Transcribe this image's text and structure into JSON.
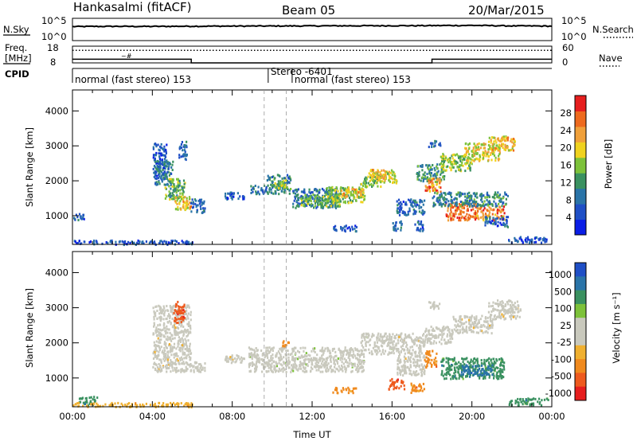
{
  "header": {
    "station": "Hankasalmi (fitACF)",
    "beam": "Beam 05",
    "date": "20/Mar/2015"
  },
  "noise_panel": {
    "left_label": "N.Sky",
    "left_ticks": [
      "10^5",
      "10^0"
    ],
    "right_label": "N.Search",
    "right_ticks": [
      "10^5",
      "10^0"
    ]
  },
  "freq_panel": {
    "left_label_1": "Freq.",
    "left_label_2": "[MHz]",
    "left_ticks": [
      "18",
      "8"
    ],
    "right_label": "Nave",
    "right_ticks": [
      "60",
      "0"
    ]
  },
  "cpid_panel": {
    "label": "CPID",
    "segments": [
      {
        "start_h": 0,
        "end_h": 9.8,
        "text": "normal (fast stereo) 153"
      },
      {
        "start_h": 9.8,
        "end_h": 11.0,
        "text": "Stereo -6401"
      },
      {
        "start_h": 11.0,
        "end_h": 24,
        "text": "normal (fast stereo) 153"
      }
    ]
  },
  "colors": {
    "power_scale": [
      "#0a1ee6",
      "#1f4fc6",
      "#2a74a8",
      "#3a9160",
      "#7dc23a",
      "#f0d21e",
      "#f0a03a",
      "#ee6a1e",
      "#e61e1e"
    ],
    "velocity_scale": [
      "#e61e1e",
      "#ee5a1e",
      "#f08a1e",
      "#f0b030",
      "#c9c9bd",
      "#c9c9bd",
      "#7dc23a",
      "#3a9160",
      "#2a74a8",
      "#1f4fc6"
    ]
  },
  "chart_data": [
    {
      "type": "line",
      "panel": "noise",
      "x": [
        0,
        2,
        4,
        6,
        8,
        10,
        12,
        14,
        16,
        18,
        20,
        22,
        24
      ],
      "series": [
        {
          "name": "N.Sky",
          "values": [
            1400,
            1600,
            1500,
            1700,
            1800,
            1900,
            2000,
            2100,
            2200,
            2300,
            2600,
            2000,
            1800
          ]
        }
      ],
      "ylim": [
        1,
        100000
      ],
      "ylog": true
    },
    {
      "type": "line",
      "panel": "frequency",
      "x": [
        0,
        5.95,
        5.95,
        18.0,
        18.0,
        24
      ],
      "series": [
        {
          "name": "Freq.",
          "values": [
            10.2,
            10.2,
            8.0,
            8.0,
            10.2,
            10.2
          ]
        },
        {
          "name": "Nave",
          "values": [
            45,
            45,
            45,
            45,
            45,
            45
          ]
        }
      ],
      "ylim": [
        8,
        18
      ]
    },
    {
      "type": "heatmap",
      "panel": "power",
      "ylabel": "Slant Range [km]",
      "xlim": [
        0,
        24
      ],
      "ylim": [
        180,
        4600
      ],
      "y_ticks": [
        1000,
        2000,
        3000,
        4000
      ],
      "colorbar": {
        "label": "Power [dB]",
        "range": [
          0,
          32
        ],
        "ticks": [
          4,
          8,
          12,
          16,
          20,
          24,
          28
        ]
      },
      "dashed_lines_h": [
        9.6,
        10.7
      ],
      "regions": [
        {
          "t0": 0.0,
          "t1": 0.6,
          "r0": 900,
          "r1": 1100,
          "v": 6
        },
        {
          "t0": 4.0,
          "t1": 4.7,
          "r0": 2100,
          "r1": 3100,
          "v": 5
        },
        {
          "t0": 4.1,
          "t1": 5.0,
          "r0": 1900,
          "r1": 2600,
          "v": 9
        },
        {
          "t0": 4.6,
          "t1": 5.6,
          "r0": 1500,
          "r1": 2100,
          "v": 14
        },
        {
          "t0": 5.1,
          "t1": 5.9,
          "r0": 1200,
          "r1": 1600,
          "v": 20
        },
        {
          "t0": 5.5,
          "t1": 5.9,
          "r0": 1250,
          "r1": 1450,
          "v": 24
        },
        {
          "t0": 5.9,
          "t1": 6.6,
          "r0": 1100,
          "r1": 1500,
          "v": 6
        },
        {
          "t0": 5.3,
          "t1": 5.7,
          "r0": 2600,
          "r1": 3150,
          "v": 7
        },
        {
          "t0": 7.6,
          "t1": 8.6,
          "r0": 1500,
          "r1": 1700,
          "v": 5
        },
        {
          "t0": 8.9,
          "t1": 9.7,
          "r0": 1650,
          "r1": 1900,
          "v": 8
        },
        {
          "t0": 9.7,
          "t1": 10.9,
          "r0": 1650,
          "r1": 2200,
          "v": 10
        },
        {
          "t0": 10.1,
          "t1": 10.8,
          "r0": 1800,
          "r1": 2050,
          "v": 16
        },
        {
          "t0": 11.0,
          "t1": 13.2,
          "r0": 1250,
          "r1": 1800,
          "v": 8
        },
        {
          "t0": 11.4,
          "t1": 13.4,
          "r0": 1300,
          "r1": 1650,
          "v": 14
        },
        {
          "t0": 12.6,
          "t1": 14.6,
          "r0": 1400,
          "r1": 1850,
          "v": 16
        },
        {
          "t0": 13.4,
          "t1": 14.6,
          "r0": 1550,
          "r1": 1800,
          "v": 22
        },
        {
          "t0": 14.4,
          "t1": 15.4,
          "r0": 1850,
          "r1": 2150,
          "v": 15
        },
        {
          "t0": 15.0,
          "t1": 16.2,
          "r0": 1950,
          "r1": 2300,
          "v": 18
        },
        {
          "t0": 14.8,
          "t1": 16.0,
          "r0": 2100,
          "r1": 2350,
          "v": 22
        },
        {
          "t0": 16.2,
          "t1": 17.6,
          "r0": 1050,
          "r1": 1500,
          "v": 6
        },
        {
          "t0": 17.2,
          "t1": 18.6,
          "r0": 2000,
          "r1": 2500,
          "v": 12
        },
        {
          "t0": 18.4,
          "t1": 20.0,
          "r0": 2300,
          "r1": 2800,
          "v": 16
        },
        {
          "t0": 19.6,
          "t1": 21.4,
          "r0": 2600,
          "r1": 3100,
          "v": 20
        },
        {
          "t0": 20.8,
          "t1": 22.2,
          "r0": 2900,
          "r1": 3300,
          "v": 22
        },
        {
          "t0": 17.6,
          "t1": 18.4,
          "r0": 1700,
          "r1": 2100,
          "v": 26
        },
        {
          "t0": 18.6,
          "t1": 20.2,
          "r0": 900,
          "r1": 1400,
          "v": 28
        },
        {
          "t0": 20.2,
          "t1": 21.6,
          "r0": 900,
          "r1": 1300,
          "v": 26
        },
        {
          "t0": 18.0,
          "t1": 21.8,
          "r0": 1300,
          "r1": 1700,
          "v": 10
        },
        {
          "t0": 13.0,
          "t1": 14.2,
          "r0": 580,
          "r1": 760,
          "v": 6
        },
        {
          "t0": 16.0,
          "t1": 16.5,
          "r0": 580,
          "r1": 880,
          "v": 8
        },
        {
          "t0": 17.1,
          "t1": 17.6,
          "r0": 580,
          "r1": 900,
          "v": 6
        },
        {
          "t0": 20.6,
          "t1": 21.8,
          "r0": 700,
          "r1": 1000,
          "v": 6
        },
        {
          "t0": 17.8,
          "t1": 18.4,
          "r0": 3000,
          "r1": 3200,
          "v": 7
        },
        {
          "t0": 21.8,
          "t1": 23.8,
          "r0": 250,
          "r1": 420,
          "v": 5
        },
        {
          "t0": 0.0,
          "t1": 6.0,
          "r0": 200,
          "r1": 320,
          "v": 5
        }
      ]
    },
    {
      "type": "heatmap",
      "panel": "velocity",
      "ylabel": "Slant Range [km]",
      "xlabel": "Time UT",
      "xlim": [
        0,
        24
      ],
      "ylim": [
        180,
        4600
      ],
      "x_ticks": [
        "00:00",
        "04:00",
        "08:00",
        "12:00",
        "16:00",
        "20:00",
        "00:00"
      ],
      "y_ticks": [
        1000,
        2000,
        3000,
        4000
      ],
      "colorbar": {
        "label": "Velocity [m s⁻¹]",
        "ticks": [
          "1000",
          "500",
          "100",
          "25",
          "-25",
          "-100",
          "-500",
          "-1000"
        ]
      },
      "dashed_lines_h": [
        9.6,
        10.7
      ],
      "regions": [
        {
          "t0": 4.0,
          "t1": 5.9,
          "r0": 1200,
          "r1": 3100,
          "c": 4
        },
        {
          "t0": 5.0,
          "t1": 5.6,
          "r0": 2600,
          "r1": 3200,
          "c": 1
        },
        {
          "t0": 5.9,
          "t1": 6.6,
          "r0": 1200,
          "r1": 1500,
          "c": 4
        },
        {
          "t0": 7.6,
          "t1": 8.6,
          "r0": 1450,
          "r1": 1700,
          "c": 4
        },
        {
          "t0": 8.8,
          "t1": 14.6,
          "r0": 1200,
          "r1": 1900,
          "c": 5
        },
        {
          "t0": 10.4,
          "t1": 10.8,
          "r0": 1900,
          "r1": 2100,
          "c": 2
        },
        {
          "t0": 14.4,
          "t1": 16.2,
          "r0": 1700,
          "r1": 2300,
          "c": 5
        },
        {
          "t0": 16.2,
          "t1": 17.6,
          "r0": 1100,
          "r1": 2300,
          "c": 4
        },
        {
          "t0": 17.6,
          "t1": 19.0,
          "r0": 2000,
          "r1": 2500,
          "c": 4
        },
        {
          "t0": 19.0,
          "t1": 21.0,
          "r0": 2300,
          "r1": 2800,
          "c": 4
        },
        {
          "t0": 20.8,
          "t1": 22.4,
          "r0": 2700,
          "r1": 3250,
          "c": 4
        },
        {
          "t0": 17.6,
          "t1": 18.2,
          "r0": 1300,
          "r1": 1800,
          "c": 2
        },
        {
          "t0": 18.4,
          "t1": 21.6,
          "r0": 1000,
          "r1": 1600,
          "c": 7
        },
        {
          "t0": 19.4,
          "t1": 21.0,
          "r0": 1100,
          "r1": 1400,
          "c": 8
        },
        {
          "t0": 13.0,
          "t1": 14.2,
          "r0": 600,
          "r1": 760,
          "c": 2
        },
        {
          "t0": 15.8,
          "t1": 16.6,
          "r0": 700,
          "r1": 1000,
          "c": 1
        },
        {
          "t0": 16.9,
          "t1": 17.6,
          "r0": 600,
          "r1": 880,
          "c": 2
        },
        {
          "t0": 21.8,
          "t1": 23.8,
          "r0": 250,
          "r1": 450,
          "c": 7
        },
        {
          "t0": 0.3,
          "t1": 1.2,
          "r0": 250,
          "r1": 500,
          "c": 7
        },
        {
          "t0": 17.8,
          "t1": 18.4,
          "r0": 3000,
          "r1": 3200,
          "c": 4
        },
        {
          "t0": 0.0,
          "t1": 6.0,
          "r0": 200,
          "r1": 320,
          "c": 3
        }
      ]
    }
  ]
}
